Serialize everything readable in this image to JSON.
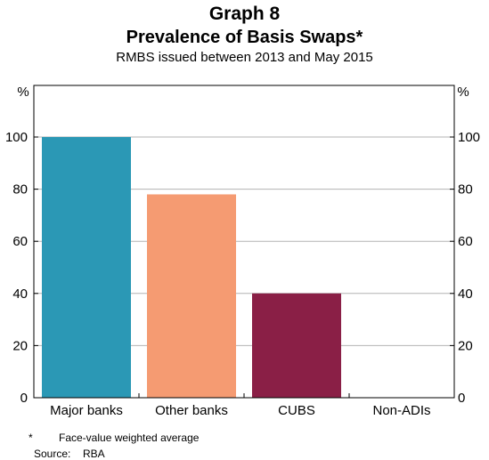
{
  "header": {
    "graph_number": "Graph 8",
    "title": "Prevalence of Basis Swaps*",
    "subtitle": "RMBS issued between 2013 and May 2015"
  },
  "chart_data": {
    "type": "bar",
    "categories": [
      "Major banks",
      "Other banks",
      "CUBS",
      "Non-ADIs"
    ],
    "values": [
      100,
      78,
      40,
      0
    ],
    "colors": [
      "#2b98b5",
      "#f59b72",
      "#8a1f46",
      "#8a1f46"
    ],
    "ylabel_left": "%",
    "ylabel_right": "%",
    "ylim": [
      0,
      100
    ],
    "yticks": [
      0,
      20,
      40,
      60,
      80,
      100
    ],
    "grid": true
  },
  "footnotes": {
    "note_marker": "*",
    "note_text": "Face-value weighted average",
    "source_label": "Source:",
    "source_text": "RBA"
  }
}
